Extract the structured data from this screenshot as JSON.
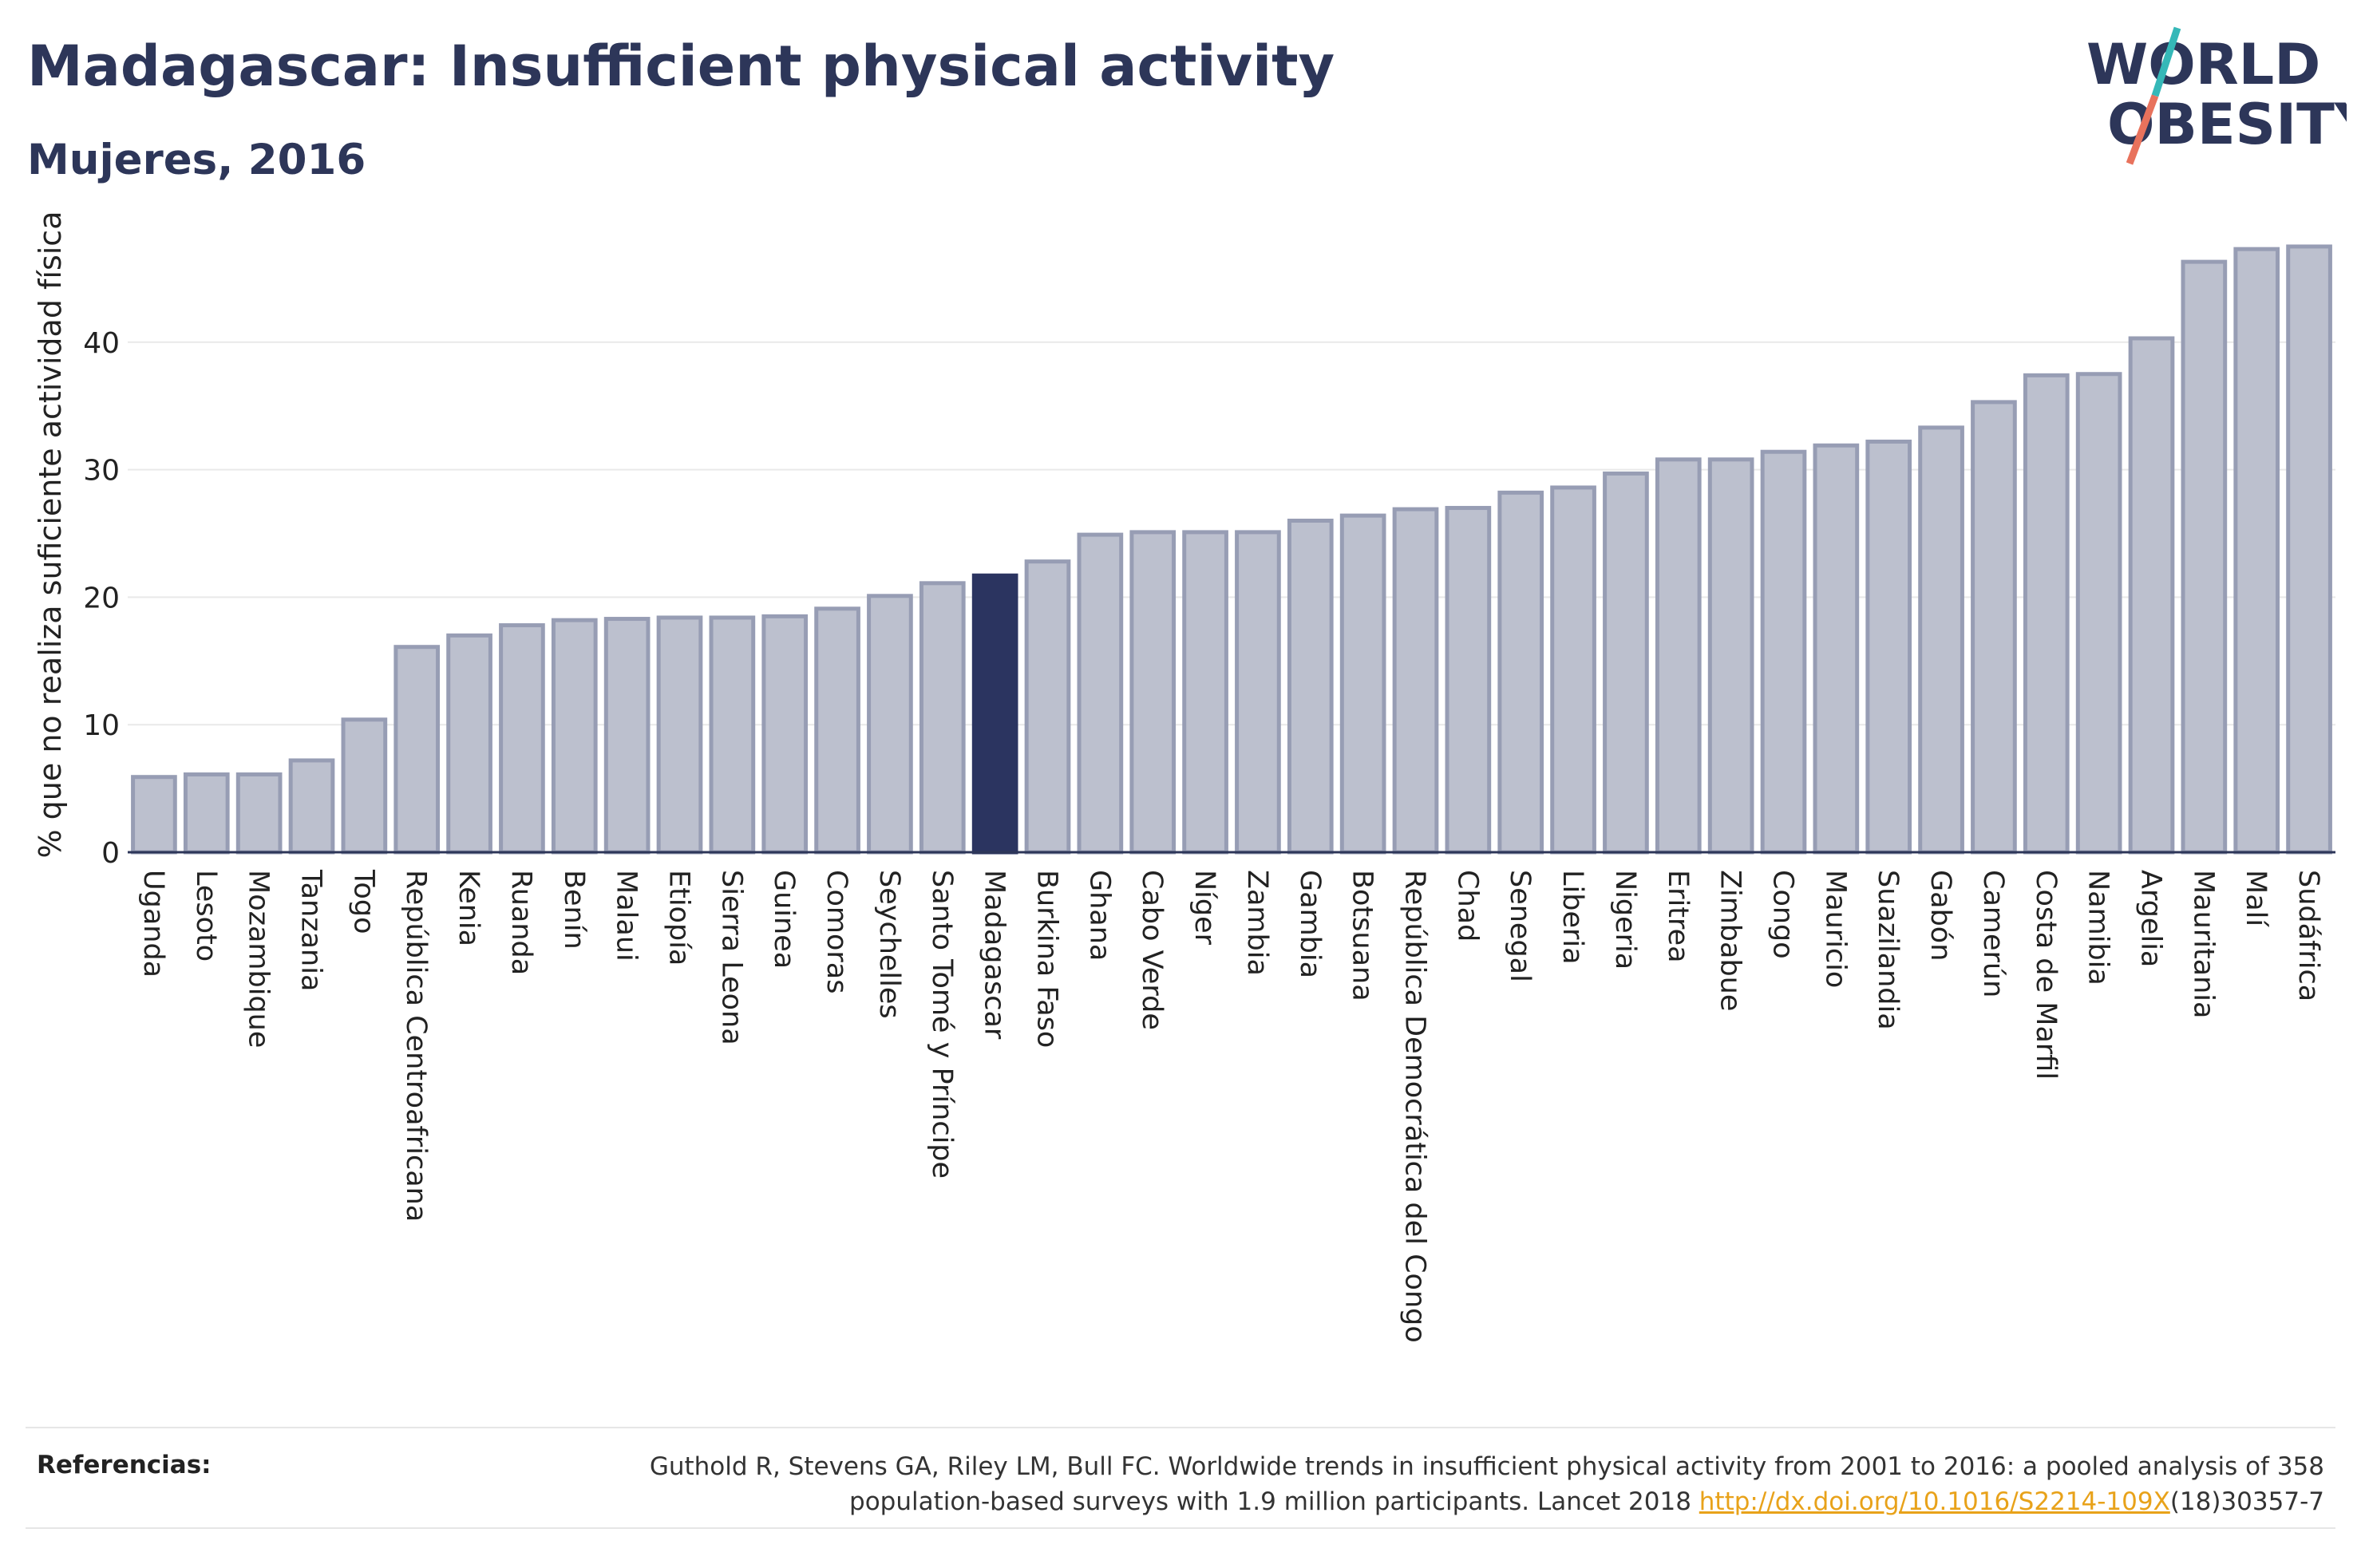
{
  "header": {
    "title": "Madagascar: Insufficient physical activity",
    "subtitle": "Mujeres, 2016"
  },
  "logo": {
    "line1": "WORLD",
    "line2": "OBESITY"
  },
  "colors": {
    "bar": "#bcc0ce",
    "bar_stroke": "#979db4",
    "highlight": "#2b3460",
    "title": "#2d3659",
    "link": "#e8a21a",
    "logo_slash_top": "#35b8b8",
    "logo_slash_bottom": "#e8725c"
  },
  "chart_data": {
    "type": "bar",
    "title": "Madagascar: Insufficient physical activity",
    "subtitle": "Mujeres, 2016",
    "xlabel": "",
    "ylabel": "% que no realiza suficiente actividad física",
    "ylim": [
      0,
      51
    ],
    "yticks": [
      0,
      10,
      20,
      30,
      40
    ],
    "grid": true,
    "highlight": "Madagascar",
    "categories": [
      "Uganda",
      "Lesoto",
      "Mozambique",
      "Tanzania",
      "Togo",
      "República Centroafricana",
      "Kenia",
      "Ruanda",
      "Benín",
      "Malaui",
      "Etiopía",
      "Sierra Leona",
      "Guinea",
      "Comoras",
      "Seychelles",
      "Santo Tomé y Príncipe",
      "Madagascar",
      "Burkina Faso",
      "Ghana",
      "Cabo Verde",
      "Níger",
      "Zambia",
      "Gambia",
      "Botsuana",
      "República Democrática del Congo",
      "Chad",
      "Senegal",
      "Liberia",
      "Nigeria",
      "Eritrea",
      "Zimbabue",
      "Congo",
      "Mauricio",
      "Suazilandia",
      "Gabón",
      "Camerún",
      "Costa de Marfil",
      "Namibia",
      "Argelia",
      "Mauritania",
      "Malí",
      "Sudáfrica"
    ],
    "values": [
      5.9,
      6.1,
      6.1,
      7.2,
      10.4,
      16.1,
      17.0,
      17.8,
      18.2,
      18.3,
      18.4,
      18.4,
      18.5,
      19.1,
      20.1,
      21.1,
      21.7,
      22.8,
      24.9,
      25.1,
      25.1,
      25.1,
      26.0,
      26.4,
      26.9,
      27.0,
      28.2,
      28.6,
      29.7,
      30.8,
      30.8,
      31.4,
      31.9,
      32.2,
      33.3,
      35.3,
      37.4,
      37.5,
      40.3,
      46.3,
      47.3,
      47.5
    ]
  },
  "references": {
    "label": "Referencias:",
    "text_line1": "Guthold R, Stevens GA, Riley LM, Bull FC. Worldwide trends in insufficient physical activity from 2001 to 2016: a pooled analysis of 358",
    "text_line2_pre": "population-based surveys with 1.9 million participants. Lancet 2018 ",
    "link": "http://dx.doi.org/10.1016/S2214-109X",
    "text_line2_post": "(18)30357-7"
  }
}
